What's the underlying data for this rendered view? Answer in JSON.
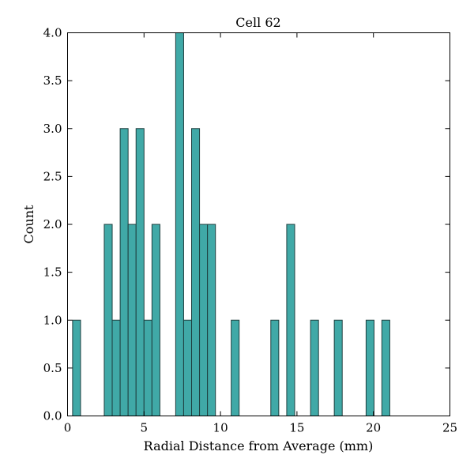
{
  "chart_data": {
    "type": "bar",
    "title": "Cell 62",
    "xlabel": "Radial Distance from Average (mm)",
    "ylabel": "Count",
    "xlim": [
      0,
      25
    ],
    "ylim": [
      0,
      4
    ],
    "xticks": [
      "0",
      "5",
      "10",
      "15",
      "20",
      "25"
    ],
    "yticks": [
      "0.0",
      "0.5",
      "1.0",
      "1.5",
      "2.0",
      "2.5",
      "3.0",
      "3.5",
      "4.0"
    ],
    "bar_color": "#40a9a7",
    "bar_edge_color": "#1f3f3f",
    "grid": false,
    "bins": [
      {
        "x0": 0.33,
        "x1": 0.85,
        "count": 1
      },
      {
        "x0": 2.4,
        "x1": 2.92,
        "count": 2
      },
      {
        "x0": 2.92,
        "x1": 3.44,
        "count": 1
      },
      {
        "x0": 3.44,
        "x1": 3.96,
        "count": 3
      },
      {
        "x0": 3.96,
        "x1": 4.48,
        "count": 2
      },
      {
        "x0": 4.48,
        "x1": 5.0,
        "count": 3
      },
      {
        "x0": 5.0,
        "x1": 5.52,
        "count": 1
      },
      {
        "x0": 5.52,
        "x1": 6.04,
        "count": 2
      },
      {
        "x0": 7.07,
        "x1": 7.59,
        "count": 4
      },
      {
        "x0": 7.59,
        "x1": 8.11,
        "count": 1
      },
      {
        "x0": 8.11,
        "x1": 8.63,
        "count": 3
      },
      {
        "x0": 8.63,
        "x1": 9.15,
        "count": 2
      },
      {
        "x0": 9.15,
        "x1": 9.67,
        "count": 2
      },
      {
        "x0": 10.7,
        "x1": 11.22,
        "count": 1
      },
      {
        "x0": 13.29,
        "x1": 13.81,
        "count": 1
      },
      {
        "x0": 14.33,
        "x1": 14.85,
        "count": 2
      },
      {
        "x0": 15.89,
        "x1": 16.41,
        "count": 1
      },
      {
        "x0": 17.44,
        "x1": 17.96,
        "count": 1
      },
      {
        "x0": 19.52,
        "x1": 20.04,
        "count": 1
      },
      {
        "x0": 20.55,
        "x1": 21.07,
        "count": 1
      }
    ]
  }
}
